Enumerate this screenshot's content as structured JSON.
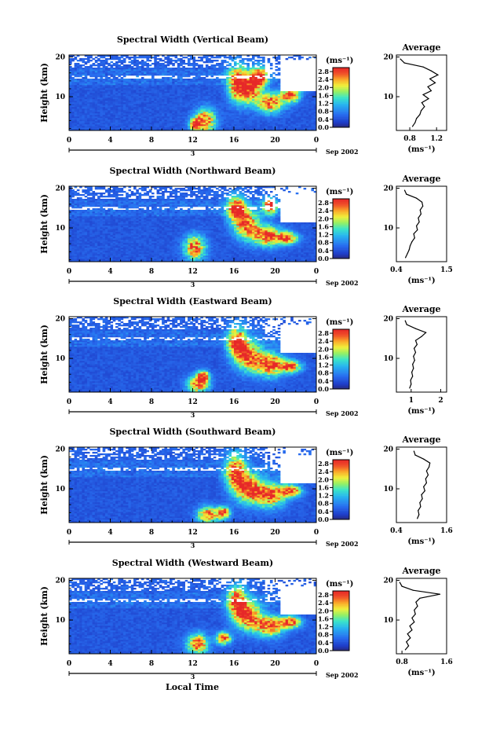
{
  "figure": {
    "xlabel": "Local Time",
    "date_label": "Sep 2002",
    "day_label": "3",
    "ylabel": "Height (km)",
    "colorbar_unit": "(ms⁻¹)",
    "average_title": "Average",
    "average_xlabel": "(ms⁻¹)"
  },
  "chart_data": [
    {
      "type": "heatmap",
      "title": "Spectral Width (Vertical Beam)",
      "x_ticks": [
        "0",
        "4",
        "8",
        "12",
        "16",
        "20",
        "0"
      ],
      "xlim": [
        0,
        24
      ],
      "y_ticks": [
        "20",
        "10"
      ],
      "ylim": [
        1.5,
        20.5
      ],
      "colorbar_ticks": [
        "2.8",
        "2.4",
        "2.0",
        "1.6",
        "1.2",
        "0.8",
        "0.4",
        "0.0"
      ],
      "colorbar_range": [
        0.0,
        3.0
      ],
      "average": {
        "x_ticks": [
          "0.8",
          "1.2"
        ],
        "xlim": [
          0.6,
          1.35
        ],
        "heights": [
          2.5,
          3.5,
          4.5,
          5.5,
          6.5,
          7.5,
          8.5,
          9.5,
          10.5,
          11.5,
          12.5,
          13.5,
          14.5,
          15.5,
          16.5,
          17.5,
          18.5,
          19.5
        ],
        "values": [
          0.84,
          0.88,
          0.9,
          0.95,
          0.97,
          1.02,
          0.98,
          1.08,
          1.0,
          1.12,
          1.07,
          1.18,
          1.1,
          1.22,
          1.12,
          1.0,
          0.72,
          0.66
        ]
      },
      "bursts": [
        [
          13.2,
          4,
          1.0,
          3.0
        ],
        [
          12.2,
          3,
          0.5,
          1.5
        ],
        [
          16.3,
          13.5,
          0.9,
          4.5
        ],
        [
          17.5,
          12,
          1.0,
          3.5
        ],
        [
          19.5,
          8.5,
          1.2,
          2.5
        ],
        [
          21.5,
          10.5,
          0.9,
          2.0
        ],
        [
          18.5,
          15,
          0.8,
          2.5
        ]
      ]
    },
    {
      "type": "heatmap",
      "title": "Spectral Width (Northward Beam)",
      "x_ticks": [
        "0",
        "4",
        "8",
        "12",
        "16",
        "20",
        "0"
      ],
      "xlim": [
        0,
        24
      ],
      "y_ticks": [
        "20",
        "10"
      ],
      "ylim": [
        1.5,
        20.5
      ],
      "colorbar_ticks": [
        "2.8",
        "2.4",
        "2.0",
        "1.6",
        "1.2",
        "0.8",
        "0.4",
        "0.0"
      ],
      "colorbar_range": [
        0.0,
        3.0
      ],
      "average": {
        "x_ticks": [
          "0.4",
          "1.5"
        ],
        "xlim": [
          0.4,
          1.5
        ],
        "heights": [
          2.5,
          3.5,
          4.5,
          5.5,
          6.5,
          7.5,
          8.5,
          9.5,
          10.5,
          11.5,
          12.5,
          13.5,
          14.5,
          15.5,
          16.5,
          17.5,
          18.5,
          19.5
        ],
        "values": [
          0.6,
          0.64,
          0.68,
          0.7,
          0.74,
          0.8,
          0.78,
          0.86,
          0.84,
          0.9,
          0.88,
          0.94,
          0.92,
          0.98,
          0.96,
          0.84,
          0.62,
          0.58
        ]
      },
      "bursts": [
        [
          12.2,
          5,
          1.0,
          3.0
        ],
        [
          16.2,
          15,
          0.9,
          3.0
        ],
        [
          17.2,
          11,
          1.2,
          3.5
        ],
        [
          19.2,
          8,
          1.4,
          2.5
        ],
        [
          21.2,
          7.5,
          1.0,
          1.5
        ],
        [
          19.5,
          15.5,
          0.7,
          2.0
        ]
      ]
    },
    {
      "type": "heatmap",
      "title": "Spectral Width (Eastward Beam)",
      "x_ticks": [
        "0",
        "4",
        "8",
        "12",
        "16",
        "20",
        "0"
      ],
      "xlim": [
        0,
        24
      ],
      "y_ticks": [
        "20",
        "10"
      ],
      "ylim": [
        1.5,
        20.5
      ],
      "colorbar_ticks": [
        "2.8",
        "2.4",
        "2.0",
        "1.6",
        "1.2",
        "0.8",
        "0.4",
        "0.0"
      ],
      "colorbar_range": [
        0.0,
        3.0
      ],
      "average": {
        "x_ticks": [
          "1",
          "2"
        ],
        "xlim": [
          0.5,
          2.2
        ],
        "heights": [
          2.5,
          3.5,
          4.5,
          5.5,
          6.5,
          7.5,
          8.5,
          9.5,
          10.5,
          11.5,
          12.5,
          13.5,
          14.5,
          15.5,
          16.5,
          17.5,
          18.5,
          19.5
        ],
        "values": [
          0.95,
          1.0,
          0.98,
          1.05,
          1.02,
          1.08,
          1.05,
          1.12,
          1.08,
          1.15,
          1.1,
          1.2,
          1.15,
          1.35,
          1.5,
          1.15,
          0.85,
          0.8
        ]
      },
      "bursts": [
        [
          12.5,
          3.5,
          1.0,
          2.0
        ],
        [
          16.3,
          14,
          0.9,
          4.0
        ],
        [
          17.5,
          10.5,
          1.2,
          3.5
        ],
        [
          19.5,
          8.5,
          1.3,
          3.0
        ],
        [
          21.5,
          8.0,
          1.0,
          1.5
        ],
        [
          13.0,
          5.5,
          0.6,
          1.5
        ]
      ]
    },
    {
      "type": "heatmap",
      "title": "Spectral Width (Southward Beam)",
      "x_ticks": [
        "0",
        "4",
        "8",
        "12",
        "16",
        "20",
        "0"
      ],
      "xlim": [
        0,
        24
      ],
      "y_ticks": [
        "20",
        "10"
      ],
      "ylim": [
        1.5,
        20.5
      ],
      "colorbar_ticks": [
        "2.8",
        "2.4",
        "2.0",
        "1.6",
        "1.2",
        "0.8",
        "0.4",
        "0.0"
      ],
      "colorbar_range": [
        0.0,
        3.0
      ],
      "average": {
        "x_ticks": [
          "0.4",
          "1.6"
        ],
        "xlim": [
          0.4,
          1.6
        ],
        "heights": [
          2.5,
          3.5,
          4.5,
          5.5,
          6.5,
          7.5,
          8.5,
          9.5,
          10.5,
          11.5,
          12.5,
          13.5,
          14.5,
          15.5,
          16.5,
          17.5,
          18.5,
          19.5
        ],
        "values": [
          0.9,
          0.94,
          0.92,
          0.98,
          0.96,
          1.02,
          1.0,
          1.08,
          1.05,
          1.12,
          1.1,
          1.16,
          1.12,
          1.18,
          1.2,
          1.05,
          0.85,
          0.82
        ]
      },
      "bursts": [
        [
          13.5,
          3.5,
          1.0,
          2.0
        ],
        [
          16.2,
          14,
          1.0,
          4.5
        ],
        [
          17.5,
          10,
          1.2,
          3.5
        ],
        [
          19.5,
          8.5,
          1.4,
          3.0
        ],
        [
          21.5,
          9.5,
          1.0,
          1.5
        ],
        [
          15.0,
          4.0,
          0.6,
          1.5
        ]
      ]
    },
    {
      "type": "heatmap",
      "title": "Spectral Width (Westward Beam)",
      "x_ticks": [
        "0",
        "4",
        "8",
        "12",
        "16",
        "20",
        "0"
      ],
      "xlim": [
        0,
        24
      ],
      "y_ticks": [
        "20",
        "10"
      ],
      "ylim": [
        1.5,
        20.5
      ],
      "colorbar_ticks": [
        "2.8",
        "2.4",
        "2.0",
        "1.6",
        "1.2",
        "0.8",
        "0.4",
        "0.0"
      ],
      "colorbar_range": [
        0.0,
        3.0
      ],
      "average": {
        "x_ticks": [
          "0.8",
          "1.6"
        ],
        "xlim": [
          0.7,
          1.6
        ],
        "heights": [
          2.5,
          3.5,
          4.5,
          5.5,
          6.5,
          7.5,
          8.5,
          9.5,
          10.5,
          11.5,
          12.5,
          13.5,
          14.5,
          15.5,
          16.5,
          17.5,
          18.5,
          19.5
        ],
        "values": [
          0.86,
          0.92,
          0.88,
          0.95,
          0.9,
          0.98,
          0.94,
          1.02,
          0.98,
          1.04,
          1.02,
          1.08,
          1.05,
          1.12,
          1.48,
          1.0,
          0.8,
          0.76
        ]
      },
      "bursts": [
        [
          12.5,
          4,
          1.0,
          2.5
        ],
        [
          16.3,
          14.5,
          0.9,
          4.0
        ],
        [
          17.5,
          11,
          1.2,
          3.5
        ],
        [
          19.5,
          8.5,
          1.3,
          2.5
        ],
        [
          21.5,
          9.5,
          1.0,
          1.5
        ],
        [
          15.0,
          5.5,
          0.7,
          1.5
        ]
      ]
    }
  ]
}
